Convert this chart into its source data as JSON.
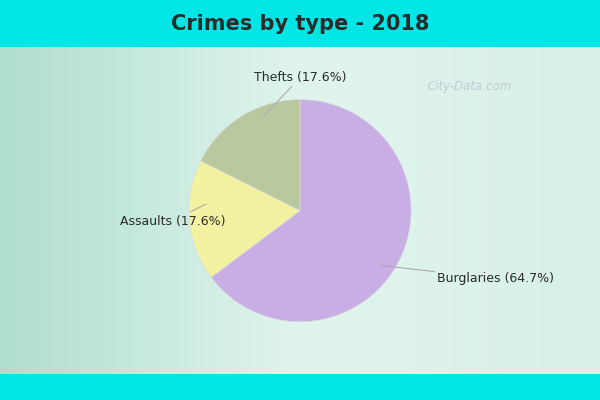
{
  "title": "Crimes by type - 2018",
  "slices": [
    {
      "label": "Burglaries",
      "pct": 64.7,
      "color": "#c9aee5"
    },
    {
      "label": "Thefts",
      "pct": 17.6,
      "color": "#f2f2a0"
    },
    {
      "label": "Assaults",
      "pct": 17.6,
      "color": "#b8c9a0"
    }
  ],
  "cyan_color": "#00e5e5",
  "title_color": "#2a2a2a",
  "title_fontsize": 15,
  "label_fontsize": 9,
  "annotation_color": "#2a2a2a",
  "watermark": "City-Data.com",
  "top_bar_height": 0.118,
  "bottom_bar_height": 0.065,
  "startangle": 90,
  "bg_colors": [
    "#9de0d0",
    "#c8e8d8",
    "#e8f5ee",
    "#f5fff8"
  ]
}
